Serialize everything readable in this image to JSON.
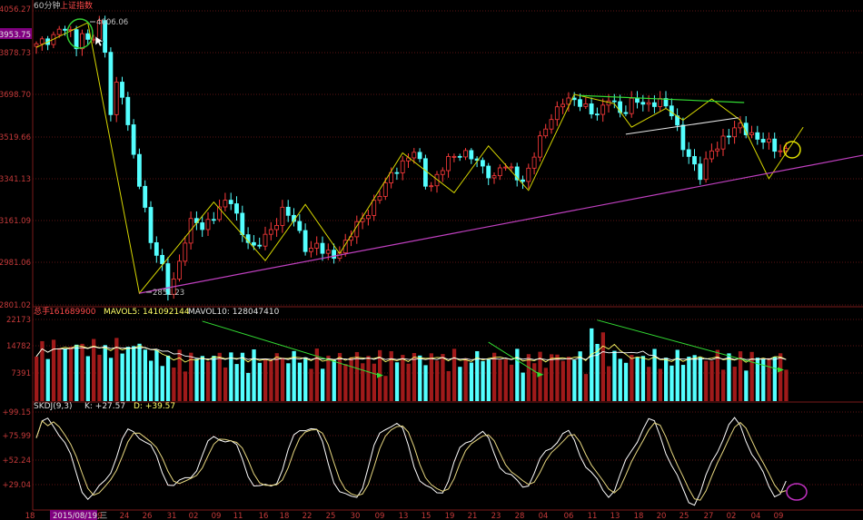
{
  "header": {
    "period": "60分钟",
    "index_name": "上证指数",
    "current_price_badge": "3953.75"
  },
  "price_panel": {
    "y_ticks": [
      "4056.27",
      "3878.73",
      "3698.70",
      "3519.66",
      "3341.13",
      "3161.09",
      "2981.06",
      "2801.02"
    ],
    "high_label": "4006.06",
    "low_label": "2851.23"
  },
  "volume_panel": {
    "label": "总手",
    "total": "161689900",
    "mavol5": "MAVOL5: 141092144",
    "mavol10": "MAVOL10: 128047410",
    "y_ticks": [
      "22173",
      "14782",
      "7391"
    ]
  },
  "kdj_panel": {
    "label": "SKDJ(9,3)",
    "k": "K: +27.57",
    "d": "D: +39.57",
    "y_ticks": [
      "+99.15",
      "+75.99",
      "+52.24",
      "+29.04"
    ]
  },
  "x_axis": {
    "labels": [
      "18",
      "2015/08/19,三",
      "9",
      "24",
      "26",
      "31",
      "02",
      "09",
      "11",
      "16",
      "18",
      "22",
      "25",
      "30",
      "09",
      "13",
      "15",
      "19",
      "21",
      "23",
      "28",
      "04",
      "06",
      "11",
      "13",
      "18",
      "20",
      "25",
      "27",
      "02",
      "04",
      "09"
    ]
  },
  "colors": {
    "up": "#ff3b3b",
    "down": "#54ffff",
    "volume_up": "#a01a1a",
    "grid": "#7a1a1a",
    "axis_text": "#c63a3a",
    "badge": "#800080",
    "zigzag": "#d7d700",
    "support": "#c040c0",
    "trendline": "#33dd33",
    "k_line": "#ffffff",
    "d_line": "#e8d880"
  },
  "chart_data": {
    "type": "candlestick",
    "price_range": [
      2801.02,
      4056.27
    ],
    "volume_max": 22173,
    "kdj_range": [
      0,
      100
    ],
    "zigzag_price": [
      [
        0,
        3990
      ],
      [
        6,
        4006
      ],
      [
        16,
        2851
      ],
      [
        28,
        3230
      ],
      [
        36,
        2990
      ],
      [
        44,
        3210
      ],
      [
        50,
        3020
      ],
      [
        60,
        3450
      ],
      [
        66,
        3280
      ],
      [
        72,
        3500
      ],
      [
        78,
        3290
      ],
      [
        86,
        3700
      ],
      [
        92,
        3580
      ]
    ],
    "price_trend_line": [
      [
        16,
        2851
      ],
      [
        120,
        3530
      ]
    ],
    "note": ""
  }
}
